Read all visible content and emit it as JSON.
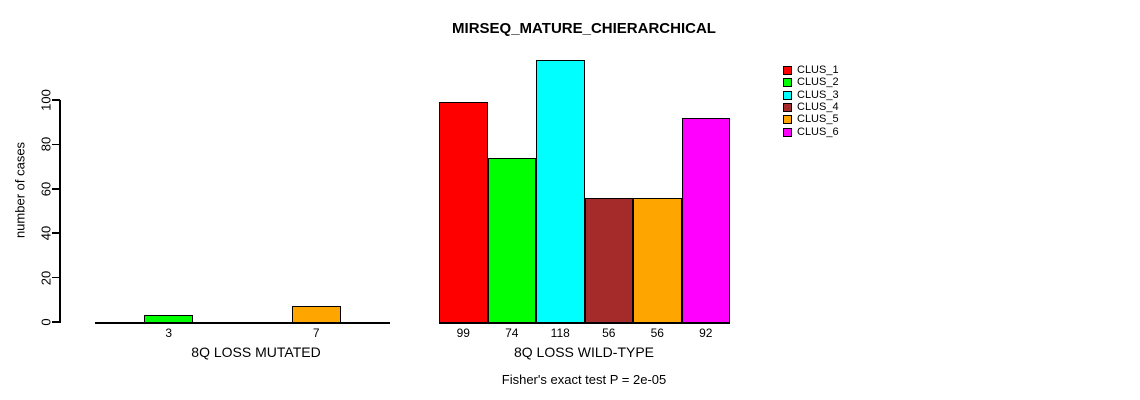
{
  "title": "MIRSEQ_MATURE_CHIERARCHICAL",
  "footnote": "Fisher's exact test P = 2e-05",
  "y_axis": {
    "label": "number of cases",
    "ticks": [
      0,
      20,
      40,
      60,
      80,
      100
    ]
  },
  "legend": {
    "entries": [
      {
        "label": "CLUS_1",
        "color": "#FF0000"
      },
      {
        "label": "CLUS_2",
        "color": "#00FF00"
      },
      {
        "label": "CLUS_3",
        "color": "#00FFFF"
      },
      {
        "label": "CLUS_4",
        "color": "#A52A2A"
      },
      {
        "label": "CLUS_5",
        "color": "#FFA500"
      },
      {
        "label": "CLUS_6",
        "color": "#FF00FF"
      }
    ]
  },
  "chart_data": {
    "type": "bar",
    "title": "MIRSEQ_MATURE_CHIERARCHICAL",
    "categories": [
      "8Q LOSS MUTATED",
      "8Q LOSS WILD-TYPE"
    ],
    "series": [
      {
        "name": "CLUS_1",
        "color": "#FF0000",
        "values": [
          0,
          99
        ]
      },
      {
        "name": "CLUS_2",
        "color": "#00FF00",
        "values": [
          3,
          74
        ]
      },
      {
        "name": "CLUS_3",
        "color": "#00FFFF",
        "values": [
          0,
          118
        ]
      },
      {
        "name": "CLUS_4",
        "color": "#A52A2A",
        "values": [
          0,
          56
        ]
      },
      {
        "name": "CLUS_5",
        "color": "#FFA500",
        "values": [
          7,
          56
        ]
      },
      {
        "name": "CLUS_6",
        "color": "#FF00FF",
        "values": [
          0,
          92
        ]
      }
    ],
    "xlabel": "",
    "ylabel": "number of cases",
    "ylim": [
      0,
      100
    ],
    "yticks": [
      0,
      20,
      40,
      60,
      80,
      100
    ],
    "bar_value_labels": "shown under each bar when value > 0",
    "annotation": "Fisher's exact test P = 2e-05",
    "legend_position": "right",
    "grid": false
  }
}
